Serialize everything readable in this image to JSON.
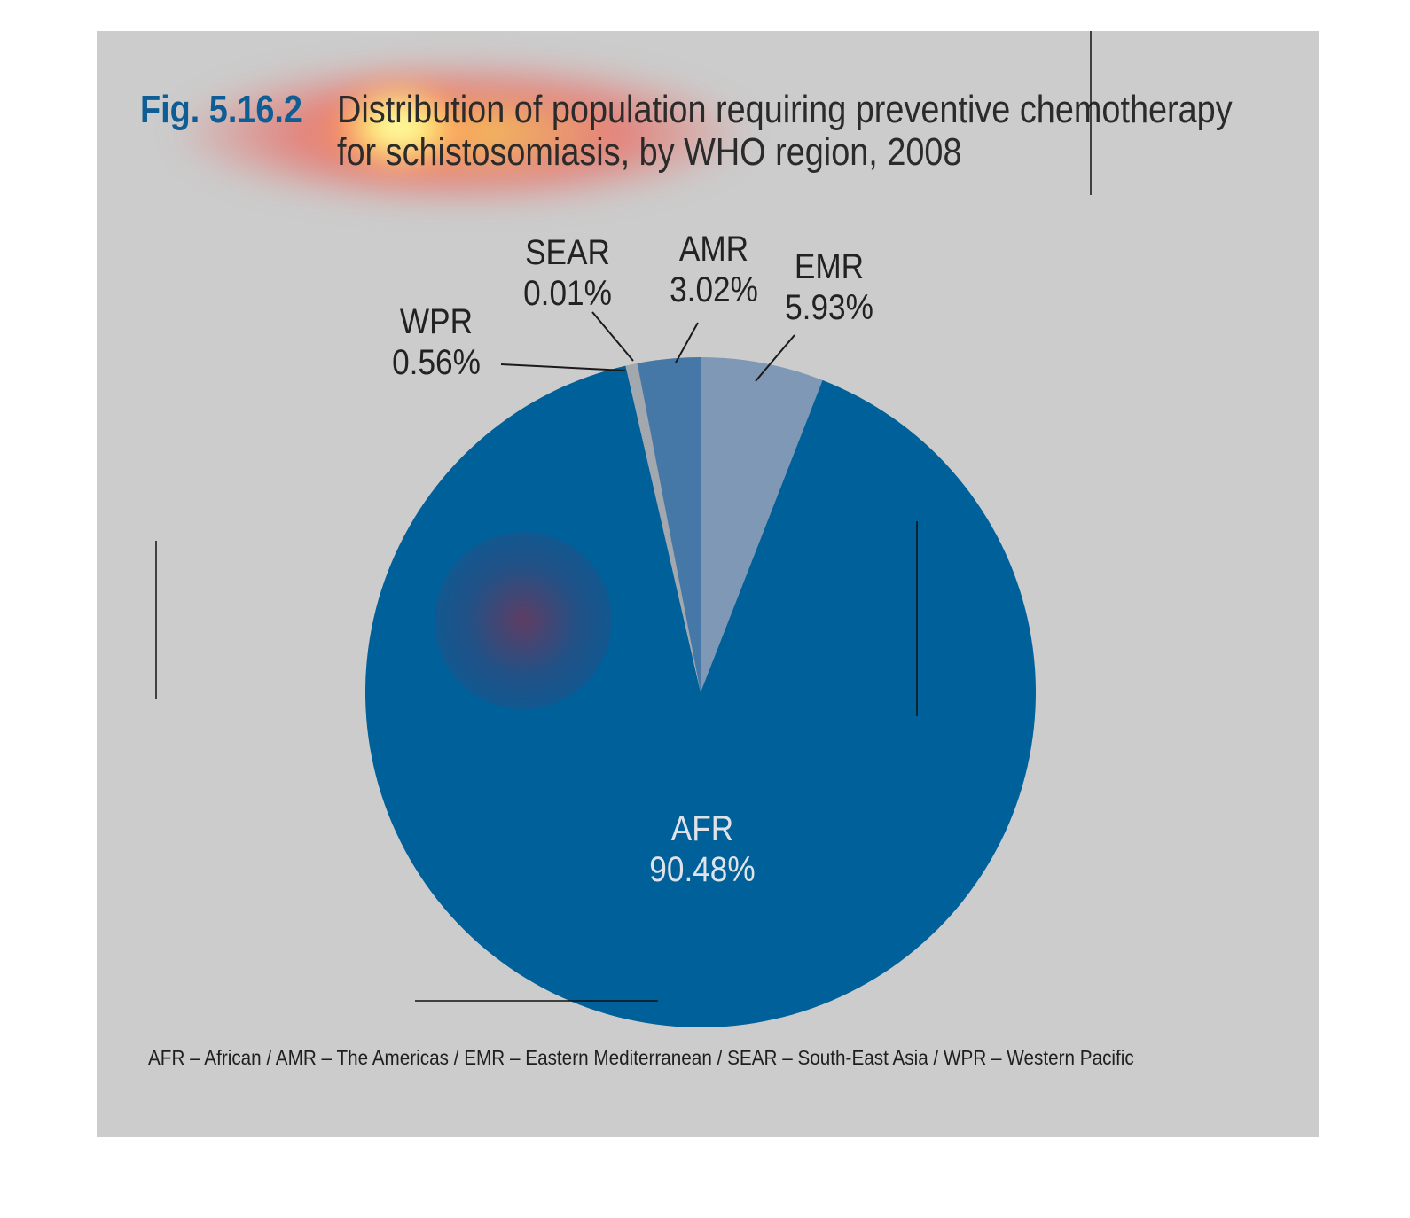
{
  "figure": {
    "number": "Fig. 5.16.2",
    "title_line1": "Distribution of population requiring preventive chemotherapy",
    "title_line2": "for schistosomiasis, by WHO region, 2008",
    "footnote": "AFR – African / AMR – The Americas / EMR – Eastern Mediterranean / SEAR – South-East Asia / WPR – Western Pacific"
  },
  "colors": {
    "background": "#cccccc",
    "title_number": "#0e5e95"
  },
  "chart_data": {
    "type": "pie",
    "start": "top",
    "direction": "clockwise",
    "slices": [
      {
        "label": "EMR",
        "value": 5.93,
        "value_text": "5.93%",
        "color": "#7f98b5"
      },
      {
        "label": "AFR",
        "value": 90.48,
        "value_text": "90.48%",
        "color": "#00609a"
      },
      {
        "label": "WPR",
        "value": 0.56,
        "value_text": "0.56%",
        "color": "#a3a8ae"
      },
      {
        "label": "SEAR",
        "value": 0.01,
        "value_text": "0.01%",
        "color": "#6c7b8b"
      },
      {
        "label": "AMR",
        "value": 3.02,
        "value_text": "3.02%",
        "color": "#4578a6"
      }
    ]
  }
}
